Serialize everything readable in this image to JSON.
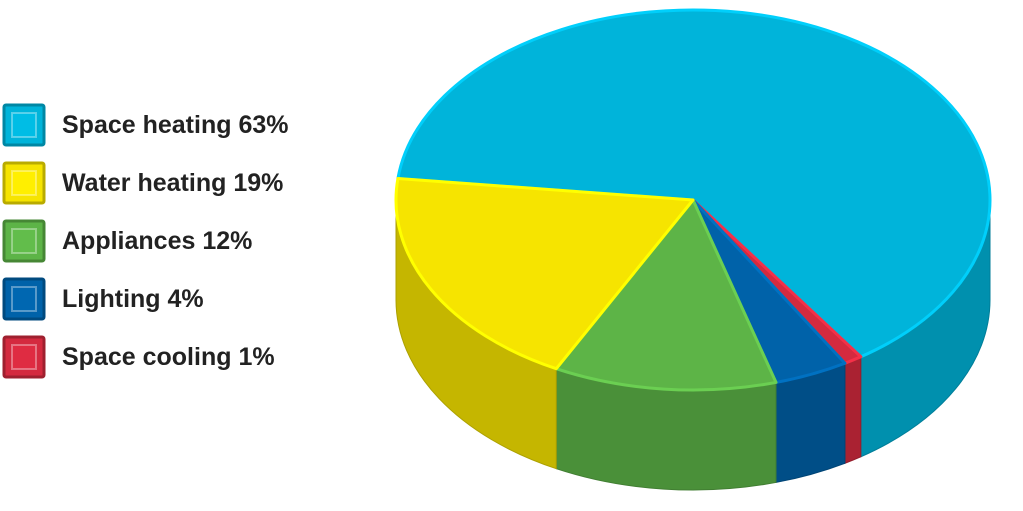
{
  "chart_data": {
    "type": "pie3d",
    "categories": [
      "Space heating",
      "Water heating",
      "Appliances",
      "Lighting",
      "Space cooling"
    ],
    "values": [
      63,
      19,
      12,
      4,
      1
    ],
    "value_labels": [
      "63%",
      "19%",
      "12%",
      "4%",
      "1%"
    ],
    "colors": [
      "#00b4da",
      "#f6e400",
      "#5db447",
      "#0062a9",
      "#d42a3f"
    ],
    "slice_order": [
      0,
      4,
      3,
      2,
      1
    ],
    "legend": "left"
  }
}
